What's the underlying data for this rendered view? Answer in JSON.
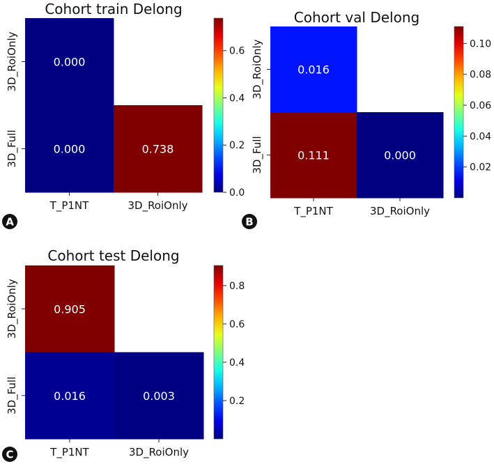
{
  "chart_data": [
    {
      "type": "heatmap",
      "panel": "A",
      "title": "Cohort train Delong",
      "rows": [
        "3D_RoiOnly",
        "3D_Full"
      ],
      "cols": [
        "T_P1NT",
        "3D_RoiOnly"
      ],
      "cells": [
        {
          "row": 0,
          "col": 0,
          "value": 0.0,
          "label": "0.000"
        },
        {
          "row": 1,
          "col": 0,
          "value": 0.0,
          "label": "0.000"
        },
        {
          "row": 1,
          "col": 1,
          "value": 0.738,
          "label": "0.738"
        }
      ],
      "colormap": "jet",
      "vmin": 0.0,
      "vmax": 0.738,
      "colorbar_ticks": [
        0.0,
        0.2,
        0.4,
        0.6
      ],
      "colorbar_tick_labels": [
        "0.0",
        "0.2",
        "0.4",
        "0.6"
      ]
    },
    {
      "type": "heatmap",
      "panel": "B",
      "title": "Cohort val Delong",
      "rows": [
        "3D_RoiOnly",
        "3D_Full"
      ],
      "cols": [
        "T_P1NT",
        "3D_RoiOnly"
      ],
      "cells": [
        {
          "row": 0,
          "col": 0,
          "value": 0.016,
          "label": "0.016"
        },
        {
          "row": 1,
          "col": 0,
          "value": 0.111,
          "label": "0.111"
        },
        {
          "row": 1,
          "col": 1,
          "value": 0.0,
          "label": "0.000"
        }
      ],
      "colormap": "jet",
      "vmin": 0.0,
      "vmax": 0.111,
      "colorbar_ticks": [
        0.02,
        0.04,
        0.06,
        0.08,
        0.1
      ],
      "colorbar_tick_labels": [
        "0.02",
        "0.04",
        "0.06",
        "0.08",
        "0.10"
      ]
    },
    {
      "type": "heatmap",
      "panel": "C",
      "title": "Cohort test Delong",
      "rows": [
        "3D_RoiOnly",
        "3D_Full"
      ],
      "cols": [
        "T_P1NT",
        "3D_RoiOnly"
      ],
      "cells": [
        {
          "row": 0,
          "col": 0,
          "value": 0.905,
          "label": "0.905"
        },
        {
          "row": 1,
          "col": 0,
          "value": 0.016,
          "label": "0.016"
        },
        {
          "row": 1,
          "col": 1,
          "value": 0.003,
          "label": "0.003"
        }
      ],
      "colormap": "jet",
      "vmin": 0.0,
      "vmax": 0.905,
      "colorbar_ticks": [
        0.2,
        0.4,
        0.6,
        0.8
      ],
      "colorbar_tick_labels": [
        "0.2",
        "0.4",
        "0.6",
        "0.8"
      ]
    }
  ]
}
